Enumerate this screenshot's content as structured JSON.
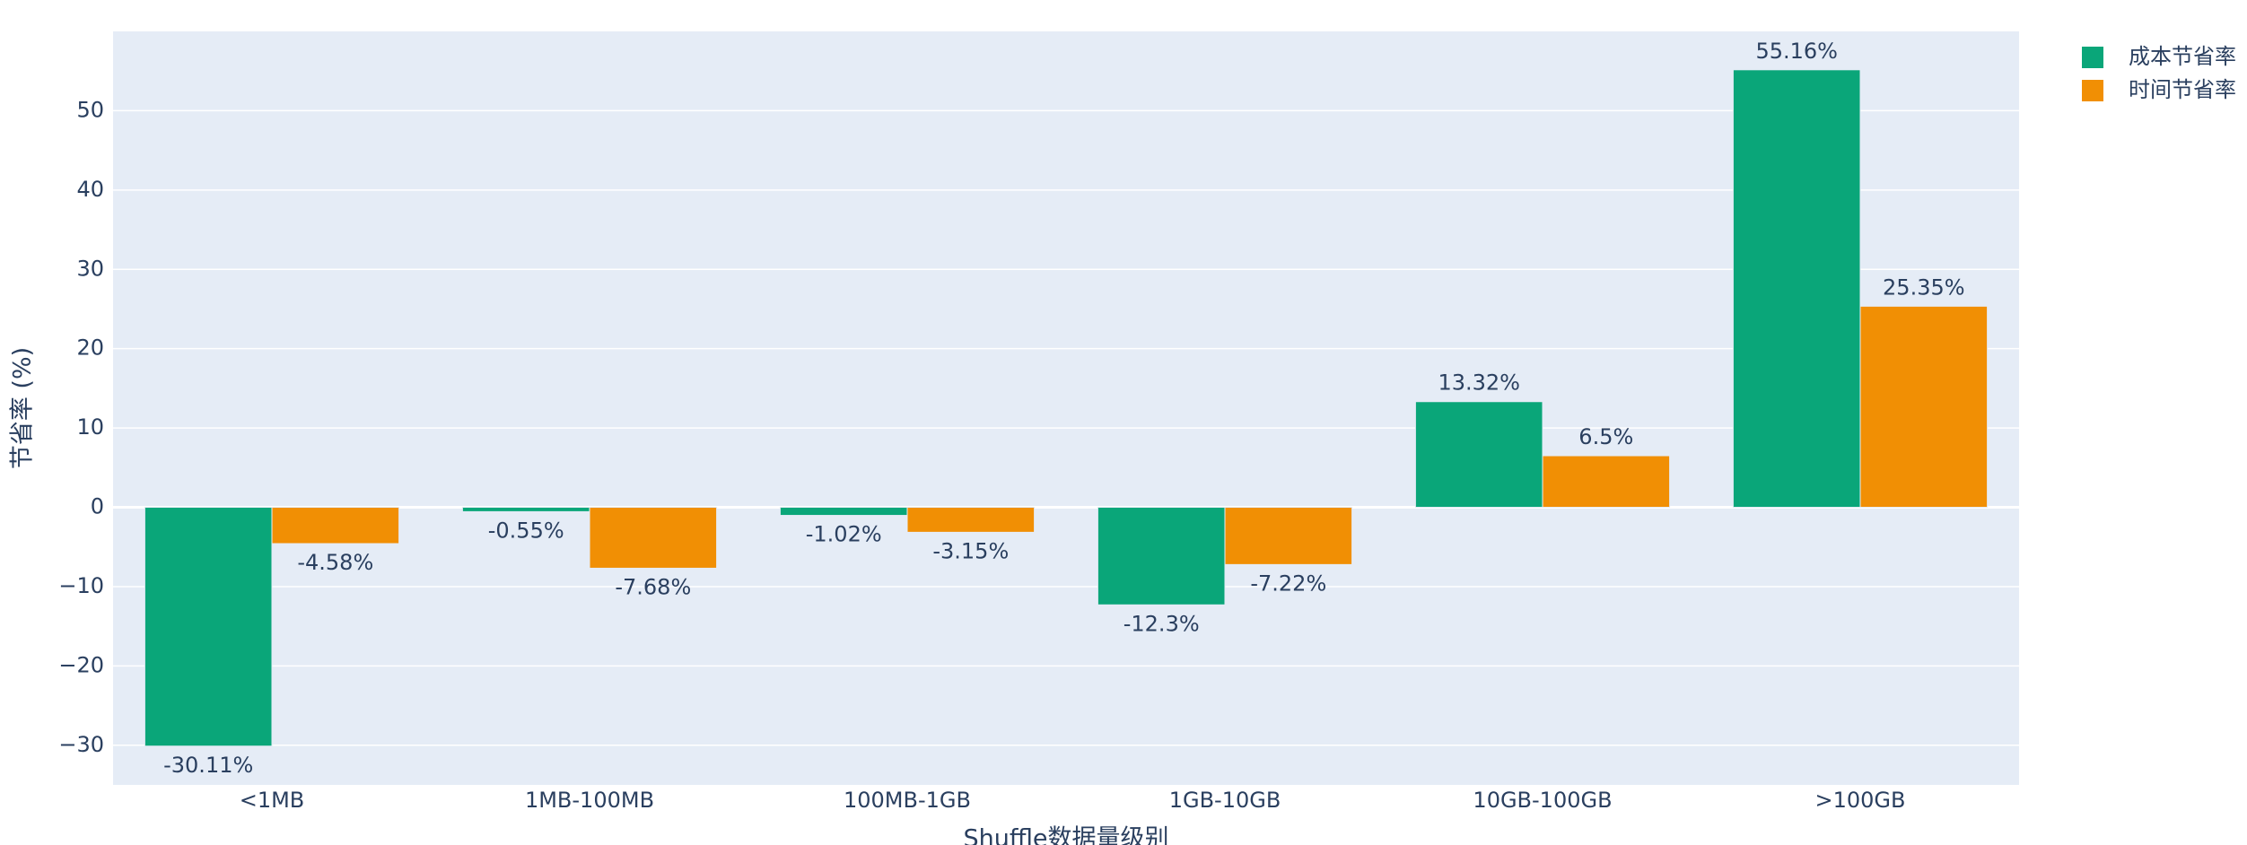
{
  "chart_data": {
    "type": "bar",
    "x_label": "Shuffle数据量级别",
    "y_label": "节省率 (%)",
    "categories": [
      "<1MB",
      "1MB-100MB",
      "100MB-1GB",
      "1GB-10GB",
      "10GB-100GB",
      ">100GB"
    ],
    "series": [
      {
        "name": "成本节省率",
        "color": "#0aa679",
        "values": [
          -30.11,
          -0.55,
          -1.02,
          -12.3,
          13.32,
          55.16
        ],
        "value_labels": [
          "-30.11%",
          "-0.55%",
          "-1.02%",
          "-12.3%",
          "13.32%",
          "55.16%"
        ]
      },
      {
        "name": "时间节省率",
        "color": "#f18f04",
        "values": [
          -4.58,
          -7.68,
          -3.15,
          -7.22,
          6.5,
          25.35
        ],
        "value_labels": [
          "-4.58%",
          "-7.68%",
          "-3.15%",
          "-7.22%",
          "6.5%",
          "25.35%"
        ]
      }
    ],
    "ylim": [
      -35,
      60
    ],
    "yticks": [
      {
        "value": -30,
        "label": "−30"
      },
      {
        "value": -20,
        "label": "−20"
      },
      {
        "value": -10,
        "label": "−10"
      },
      0,
      10,
      20,
      30,
      40,
      50
    ],
    "grid": true,
    "legend": "top-right"
  }
}
